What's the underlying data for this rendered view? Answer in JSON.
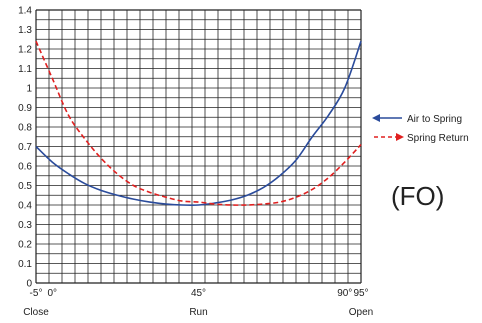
{
  "chart_data": {
    "type": "line",
    "ylim": [
      0,
      1.4
    ],
    "xlim": [
      -5,
      95
    ],
    "y_ticks": [
      "0",
      "0.1",
      "0.2",
      "0.3",
      "0.4",
      "0.5",
      "0.6",
      "0.7",
      "0.8",
      "0.9",
      "1",
      "1.1",
      "1.2",
      "1.3",
      "1.4"
    ],
    "x_ticks": [
      {
        "value": -5,
        "label": "-5°"
      },
      {
        "value": 0,
        "label": "0°"
      },
      {
        "value": 45,
        "label": "45°"
      },
      {
        "value": 90,
        "label": "90°"
      },
      {
        "value": 95,
        "label": "95°"
      }
    ],
    "x_sublabels": [
      {
        "value": -5,
        "label": "Close"
      },
      {
        "value": 45,
        "label": "Run"
      },
      {
        "value": 95,
        "label": "Open"
      }
    ],
    "grid": true,
    "legend_position": "right",
    "annotation": "(FO)",
    "series": [
      {
        "name": "Air to Spring",
        "color": "#2a4b9b",
        "style": "solid",
        "marker": "arrow-left",
        "x": [
          -5,
          0,
          5,
          10,
          15,
          20,
          25,
          30,
          35,
          40,
          45,
          50,
          55,
          60,
          65,
          70,
          75,
          80,
          85,
          90,
          95
        ],
        "y": [
          0.7,
          0.62,
          0.56,
          0.51,
          0.475,
          0.45,
          0.43,
          0.415,
          0.405,
          0.4,
          0.4,
          0.41,
          0.425,
          0.45,
          0.49,
          0.55,
          0.63,
          0.75,
          0.86,
          1.0,
          1.24
        ]
      },
      {
        "name": "Spring Return",
        "color": "#e02020",
        "style": "dashed",
        "marker": "arrow-right",
        "x": [
          -5,
          0,
          5,
          10,
          15,
          20,
          25,
          30,
          35,
          40,
          45,
          50,
          55,
          60,
          65,
          70,
          75,
          80,
          85,
          90,
          95
        ],
        "y": [
          1.24,
          1.05,
          0.86,
          0.74,
          0.64,
          0.56,
          0.5,
          0.465,
          0.44,
          0.42,
          0.415,
          0.405,
          0.4,
          0.4,
          0.405,
          0.415,
          0.44,
          0.48,
          0.54,
          0.62,
          0.71
        ]
      }
    ]
  }
}
